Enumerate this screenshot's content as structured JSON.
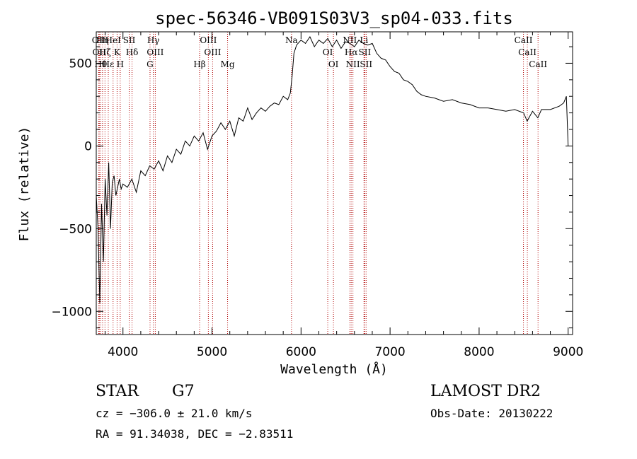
{
  "chart_data": {
    "type": "line",
    "title": "spec-56346-VB091S03V3_sp04-033.fits",
    "xlabel": "Wavelength (Å)",
    "ylabel": "Flux (relative)",
    "xlim": [
      3700,
      9050
    ],
    "ylim": [
      -1140,
      690
    ],
    "xticks": [
      4000,
      5000,
      6000,
      7000,
      8000,
      9000
    ],
    "yticks": [
      -1000,
      -500,
      0,
      500
    ],
    "grid": false,
    "series": [
      {
        "color": "#000000",
        "x": [
          3700,
          3720,
          3740,
          3760,
          3780,
          3800,
          3820,
          3840,
          3860,
          3880,
          3900,
          3920,
          3940,
          3960,
          3980,
          4000,
          4050,
          4100,
          4150,
          4200,
          4250,
          4300,
          4350,
          4400,
          4450,
          4500,
          4550,
          4600,
          4650,
          4700,
          4750,
          4800,
          4850,
          4900,
          4950,
          5000,
          5050,
          5100,
          5150,
          5200,
          5250,
          5300,
          5350,
          5400,
          5450,
          5500,
          5550,
          5600,
          5650,
          5700,
          5750,
          5800,
          5850,
          5880,
          5900,
          5920,
          5950,
          6000,
          6050,
          6100,
          6150,
          6200,
          6250,
          6300,
          6350,
          6400,
          6450,
          6500,
          6550,
          6600,
          6650,
          6700,
          6750,
          6800,
          6850,
          6900,
          6950,
          7000,
          7050,
          7100,
          7150,
          7200,
          7250,
          7300,
          7350,
          7400,
          7500,
          7600,
          7700,
          7800,
          7900,
          8000,
          8100,
          8200,
          8300,
          8400,
          8500,
          8540,
          8600,
          8660,
          8700,
          8800,
          8900,
          8950,
          8980,
          9000
        ],
        "y": [
          -300,
          -500,
          -950,
          -350,
          -700,
          -200,
          -420,
          -100,
          -500,
          -220,
          -180,
          -300,
          -250,
          -200,
          -260,
          -230,
          -250,
          -200,
          -280,
          -150,
          -180,
          -120,
          -140,
          -90,
          -150,
          -60,
          -100,
          -20,
          -50,
          30,
          0,
          60,
          30,
          80,
          -20,
          60,
          90,
          140,
          100,
          150,
          60,
          170,
          150,
          230,
          160,
          200,
          230,
          210,
          240,
          260,
          250,
          300,
          280,
          320,
          420,
          560,
          610,
          640,
          620,
          660,
          600,
          640,
          620,
          650,
          600,
          640,
          590,
          630,
          620,
          600,
          640,
          620,
          610,
          620,
          560,
          530,
          520,
          480,
          450,
          440,
          400,
          390,
          370,
          330,
          310,
          300,
          290,
          270,
          280,
          260,
          250,
          230,
          230,
          220,
          210,
          220,
          200,
          150,
          210,
          170,
          220,
          220,
          240,
          260,
          300,
          0
        ]
      }
    ],
    "line_markers": [
      {
        "wavelength": 3727,
        "labels": [
          "OII"
        ],
        "color": "#b00000"
      },
      {
        "wavelength": 3734,
        "labels": [
          "OII"
        ],
        "color": "#b00000"
      },
      {
        "wavelength": 3750,
        "labels": [
          "Hθ"
        ],
        "color": "#b00000"
      },
      {
        "wavelength": 3771,
        "labels": [
          "Hη"
        ],
        "color": "#b00000"
      },
      {
        "wavelength": 3798,
        "labels": [
          "Hζ"
        ],
        "color": "#b00000"
      },
      {
        "wavelength": 3835,
        "labels": [
          "Hε"
        ],
        "color": "#b00000"
      },
      {
        "wavelength": 3889,
        "labels": [
          "HeI"
        ],
        "color": "#b00000"
      },
      {
        "wavelength": 3934,
        "labels": [
          "K"
        ],
        "color": "#b00000"
      },
      {
        "wavelength": 3969,
        "labels": [
          "H"
        ],
        "color": "#b00000"
      },
      {
        "wavelength": 4070,
        "labels": [
          "SII"
        ],
        "color": "#b00000"
      },
      {
        "wavelength": 4102,
        "labels": [
          "Hδ"
        ],
        "color": "#b00000"
      },
      {
        "wavelength": 4304,
        "labels": [
          "G"
        ],
        "color": "#b00000"
      },
      {
        "wavelength": 4341,
        "labels": [
          "Hγ"
        ],
        "color": "#b00000"
      },
      {
        "wavelength": 4363,
        "labels": [
          "OIII"
        ],
        "color": "#b00000"
      },
      {
        "wavelength": 4861,
        "labels": [
          "Hβ"
        ],
        "color": "#b00000"
      },
      {
        "wavelength": 4959,
        "labels": [
          "OIII"
        ],
        "color": "#b00000"
      },
      {
        "wavelength": 5007,
        "labels": [
          "OIII"
        ],
        "color": "#b00000"
      },
      {
        "wavelength": 5175,
        "labels": [
          "Mg"
        ],
        "color": "#b00000"
      },
      {
        "wavelength": 5893,
        "labels": [
          "Na"
        ],
        "color": "#b00000"
      },
      {
        "wavelength": 6300,
        "labels": [
          "OI"
        ],
        "color": "#b00000"
      },
      {
        "wavelength": 6364,
        "labels": [
          "OI"
        ],
        "color": "#b00000"
      },
      {
        "wavelength": 6548,
        "labels": [
          "NII"
        ],
        "color": "#b00000"
      },
      {
        "wavelength": 6563,
        "labels": [
          "Hα"
        ],
        "color": "#b00000"
      },
      {
        "wavelength": 6583,
        "labels": [
          "NII"
        ],
        "color": "#b00000"
      },
      {
        "wavelength": 6707,
        "labels": [
          "Li"
        ],
        "color": "#b00000"
      },
      {
        "wavelength": 6716,
        "labels": [
          "SII"
        ],
        "color": "#b00000"
      },
      {
        "wavelength": 6731,
        "labels": [
          "SII"
        ],
        "color": "#b00000"
      },
      {
        "wavelength": 8498,
        "labels": [
          "CaII"
        ],
        "color": "#b00000"
      },
      {
        "wavelength": 8542,
        "labels": [
          "CaII"
        ],
        "color": "#b00000"
      },
      {
        "wavelength": 8662,
        "labels": [
          "CaII"
        ],
        "color": "#b00000"
      }
    ]
  },
  "info": {
    "object_class": "STAR",
    "subclass": "G7",
    "survey": "LAMOST DR2",
    "velocity": "cz = −306.0 ± 21.0 km/s",
    "obs_date": "Obs-Date: 20130222",
    "coords": "RA =  91.34038, DEC =  −2.83511"
  }
}
